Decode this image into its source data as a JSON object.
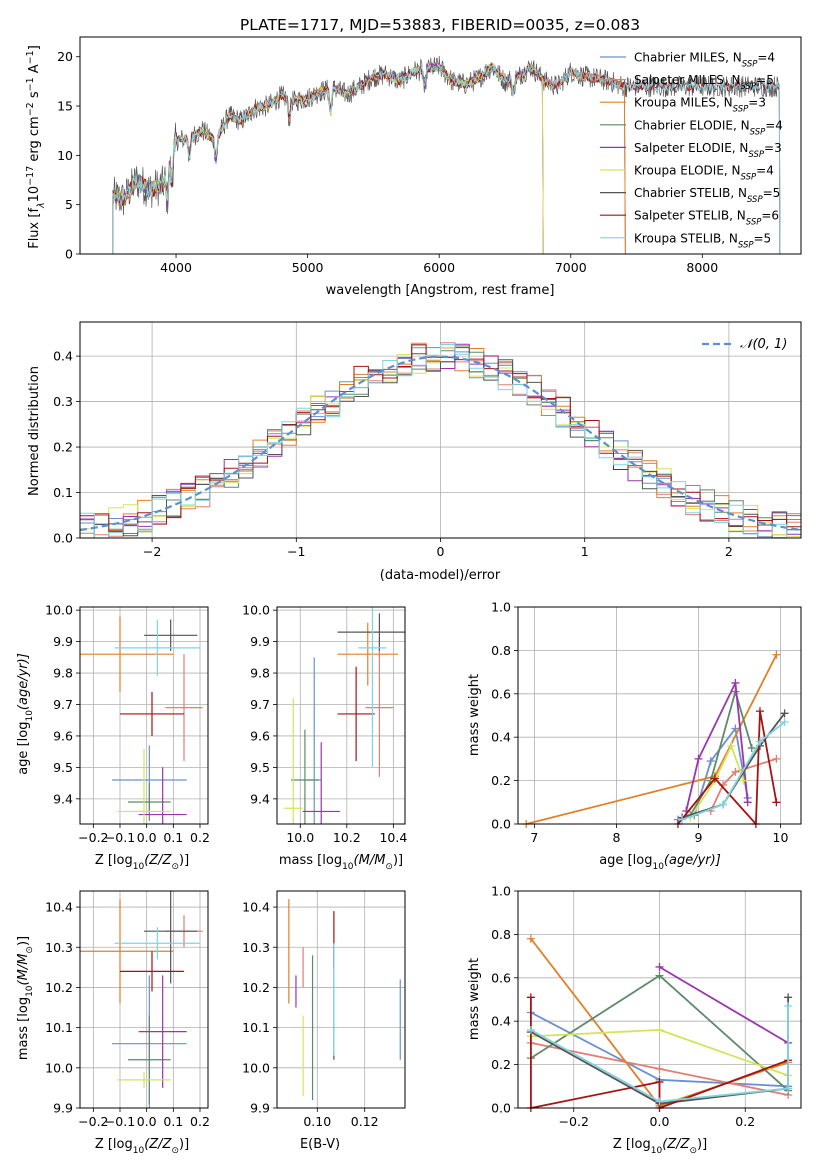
{
  "figure_title": "PLATE=1717, MJD=53883, FIBERID=0035, z=0.083",
  "series_styles": [
    {
      "name": "Chabrier MILES",
      "color": "#6a8fd0"
    },
    {
      "name": "Salpeter MILES",
      "color": "#e07f72"
    },
    {
      "name": "Kroupa MILES",
      "color": "#e0802a"
    },
    {
      "name": "Chabrier ELODIE",
      "color": "#5e8a6a"
    },
    {
      "name": "Salpeter ELODIE",
      "color": "#9a35b0"
    },
    {
      "name": "Kroupa ELODIE",
      "color": "#d6e35a"
    },
    {
      "name": "Chabrier STELIB",
      "color": "#555555"
    },
    {
      "name": "Salpeter STELIB",
      "color": "#a31515"
    },
    {
      "name": "Kroupa STELIB",
      "color": "#7fd4e0"
    }
  ],
  "chart_data": [
    {
      "id": "spectrum",
      "type": "line",
      "title": "PLATE=1717, MJD=53883, FIBERID=0035, z=0.083",
      "xlabel": "wavelength [Angstrom, rest frame]",
      "ylabel_main": "Flux [f",
      "ylabel_sub": "λ",
      "ylabel_rest": "10",
      "ylabel_exp1": "−17",
      "ylabel_mid": " erg cm",
      "ylabel_exp2": "−2",
      "ylabel_mid2": " s",
      "ylabel_exp3": "−1",
      "ylabel_mid3": " A",
      "ylabel_exp4": "−1",
      "ylabel_end": "]",
      "xlim": [
        3270,
        8750
      ],
      "ylim": [
        0,
        22
      ],
      "xticks": [
        4000,
        5000,
        6000,
        7000,
        8000
      ],
      "yticks": [
        0,
        5,
        10,
        15,
        20
      ],
      "grid": false,
      "legend_position": "upper right",
      "legend": [
        {
          "label": "Chabrier MILES, N",
          "sub": "SSP",
          "tail": "=4"
        },
        {
          "label": "Salpeter MILES, N",
          "sub": "SSP",
          "tail": "=5"
        },
        {
          "label": "Kroupa MILES, N",
          "sub": "SSP",
          "tail": "=3"
        },
        {
          "label": "Chabrier ELODIE, N",
          "sub": "SSP",
          "tail": "=4"
        },
        {
          "label": "Salpeter ELODIE, N",
          "sub": "SSP",
          "tail": "=3"
        },
        {
          "label": "Kroupa ELODIE, N",
          "sub": "SSP",
          "tail": "=4"
        },
        {
          "label": "Chabrier STELIB, N",
          "sub": "SSP",
          "tail": "=5"
        },
        {
          "label": "Salpeter STELIB, N",
          "sub": "SSP",
          "tail": "=6"
        },
        {
          "label": "Kroupa STELIB, N",
          "sub": "SSP",
          "tail": "=5"
        }
      ],
      "data_envelope": {
        "x": [
          3500,
          3600,
          3700,
          3800,
          3900,
          4000,
          4100,
          4200,
          4300,
          4400,
          4500,
          4600,
          4700,
          4800,
          4900,
          5000,
          5100,
          5200,
          5300,
          5400,
          5500,
          5600,
          5700,
          5800,
          5900,
          6000,
          6100,
          6200,
          6300,
          6400,
          6500,
          6600,
          6700,
          6800,
          6900,
          7000,
          7100,
          7200,
          7300,
          7400
        ],
        "y": [
          6.0,
          5.5,
          7.5,
          6.5,
          7.0,
          11.5,
          11.8,
          12.5,
          11.5,
          14.0,
          13.5,
          14.8,
          15.0,
          16.0,
          15.5,
          15.8,
          16.5,
          16.8,
          16.2,
          17.0,
          18.0,
          18.2,
          17.5,
          18.5,
          18.8,
          19.0,
          17.5,
          17.2,
          17.8,
          19.0,
          17.5,
          18.0,
          19.0,
          17.5,
          17.0,
          18.5,
          18.0,
          17.8,
          17.5,
          17.0
        ]
      },
      "model_end_wavelength": {
        "MILES": 7430,
        "ELODIE": 6800,
        "STELIB": 8600
      }
    },
    {
      "id": "residual_hist",
      "type": "histogram",
      "xlabel": "(data-model)/error",
      "ylabel": "Normed distribution",
      "xlim": [
        -2.5,
        2.5
      ],
      "ylim": [
        0,
        0.475
      ],
      "xticks": [
        -2,
        -1,
        0,
        1,
        2
      ],
      "xtick_labels": [
        "−2",
        "−1",
        "0",
        "1",
        "2"
      ],
      "yticks": [
        0.0,
        0.1,
        0.2,
        0.3,
        0.4
      ],
      "ytick_labels": [
        "0.0",
        "0.1",
        "0.2",
        "0.3",
        "0.4"
      ],
      "grid": true,
      "legend_position": "upper right",
      "reference_curve": {
        "label": "𝒩(0, 1)",
        "mean": 0,
        "sigma": 1,
        "style": "dashed"
      },
      "bin_width": 0.1
    },
    {
      "id": "age_vs_Z",
      "type": "errorbar",
      "xlabel_pre": "Z [log",
      "xlabel_sub": "10",
      "xlabel_post": "(Z/Z",
      "xlabel_sym": "⊙",
      "xlabel_end": ")]",
      "ylabel_pre": "age  [log",
      "ylabel_sub": "10",
      "ylabel_post": "(age/yr)]",
      "xlim": [
        -0.25,
        0.23
      ],
      "ylim": [
        9.32,
        10.01
      ],
      "xticks": [
        -0.2,
        -0.1,
        0.0,
        0.1,
        0.2
      ],
      "xtick_labels": [
        "−0.2",
        "−0.1",
        "0.0",
        "0.1",
        "0.2"
      ],
      "yticks": [
        9.4,
        9.5,
        9.6,
        9.7,
        9.8,
        9.9,
        10.0
      ],
      "ytick_labels": [
        "9.4",
        "9.5",
        "9.6",
        "9.7",
        "9.8",
        "9.9",
        "10.0"
      ],
      "grid": true,
      "points": [
        {
          "x": 0.01,
          "xerr": 0.14,
          "y": 9.46,
          "yerr": 0.11,
          "series": 0
        },
        {
          "x": 0.14,
          "xerr": 0.07,
          "y": 9.69,
          "yerr": 0.17,
          "series": 1
        },
        {
          "x": -0.1,
          "xerr": 0.2,
          "y": 9.86,
          "yerr": 0.12,
          "series": 2
        },
        {
          "x": 0.01,
          "xerr": 0.08,
          "y": 9.39,
          "yerr": 0.06,
          "series": 3
        },
        {
          "x": 0.06,
          "xerr": 0.09,
          "y": 9.35,
          "yerr": 0.15,
          "series": 4
        },
        {
          "x": -0.01,
          "xerr": 0.1,
          "y": 9.36,
          "yerr": 0.2,
          "series": 5
        },
        {
          "x": 0.09,
          "xerr": 0.1,
          "y": 9.92,
          "yerr": 0.05,
          "series": 6
        },
        {
          "x": 0.02,
          "xerr": 0.12,
          "y": 9.67,
          "yerr": 0.07,
          "series": 7
        },
        {
          "x": 0.04,
          "xerr": 0.16,
          "y": 9.88,
          "yerr": 0.09,
          "series": 8
        }
      ]
    },
    {
      "id": "age_vs_mass",
      "type": "errorbar",
      "xlabel_pre": "mass [log",
      "xlabel_sub": "10",
      "xlabel_post": "(M/M",
      "xlabel_sym": "⊙",
      "xlabel_end": ")]",
      "xlim": [
        9.9,
        10.45
      ],
      "ylim": [
        9.32,
        10.01
      ],
      "xticks": [
        10.0,
        10.2,
        10.4
      ],
      "xtick_labels": [
        "10.0",
        "10.2",
        "10.4"
      ],
      "yticks": [
        9.4,
        9.5,
        9.6,
        9.7,
        9.8,
        9.9,
        10.0
      ],
      "ytick_labels": [
        "9.4",
        "9.5",
        "9.6",
        "9.7",
        "9.8",
        "9.9",
        "10.0"
      ],
      "grid": true,
      "points": [
        {
          "x": 10.06,
          "xerr": 0.03,
          "y": 9.46,
          "yerr": 0.39,
          "series": 0
        },
        {
          "x": 10.34,
          "xerr": 0.06,
          "y": 9.69,
          "yerr": 0.22,
          "series": 1
        },
        {
          "x": 10.29,
          "xerr": 0.13,
          "y": 9.86,
          "yerr": 0.1,
          "series": 2
        },
        {
          "x": 10.02,
          "xerr": 0.06,
          "y": 9.46,
          "yerr": 0.16,
          "series": 3
        },
        {
          "x": 10.09,
          "xerr": 0.08,
          "y": 9.36,
          "yerr": 0.22,
          "series": 4
        },
        {
          "x": 9.97,
          "xerr": 0.04,
          "y": 9.37,
          "yerr": 0.35,
          "series": 5
        },
        {
          "x": 10.34,
          "xerr": 0.18,
          "y": 9.93,
          "yerr": 0.06,
          "series": 6
        },
        {
          "x": 10.24,
          "xerr": 0.08,
          "y": 9.67,
          "yerr": 0.15,
          "series": 7
        },
        {
          "x": 10.31,
          "xerr": 0.06,
          "y": 9.88,
          "yerr": 0.38,
          "series": 8
        }
      ]
    },
    {
      "id": "weight_vs_age",
      "type": "line",
      "xlabel_pre": "age  [log",
      "xlabel_sub": "10",
      "xlabel_post": "(age/yr)]",
      "ylabel": "mass weight",
      "xlim": [
        6.8,
        10.25
      ],
      "ylim": [
        0,
        1
      ],
      "xticks": [
        7,
        8,
        9,
        10
      ],
      "xtick_labels": [
        "7",
        "8",
        "9",
        "10"
      ],
      "yticks": [
        0.0,
        0.2,
        0.4,
        0.6,
        0.8,
        1.0
      ],
      "ytick_labels": [
        "0.0",
        "0.2",
        "0.4",
        "0.6",
        "0.8",
        "1.0"
      ],
      "grid": true,
      "series": [
        {
          "series": 0,
          "x": [
            8.75,
            8.95,
            9.15,
            9.45,
            9.6
          ],
          "y": [
            0.02,
            0.04,
            0.29,
            0.44,
            0.12
          ]
        },
        {
          "series": 1,
          "x": [
            9.15,
            9.3,
            9.45,
            9.95
          ],
          "y": [
            0.06,
            0.18,
            0.24,
            0.3
          ]
        },
        {
          "series": 2,
          "x": [
            6.9,
            9.2,
            9.95
          ],
          "y": [
            0.0,
            0.22,
            0.78
          ]
        },
        {
          "series": 3,
          "x": [
            8.9,
            9.15,
            9.45,
            9.65
          ],
          "y": [
            0.04,
            0.2,
            0.61,
            0.35
          ]
        },
        {
          "series": 4,
          "x": [
            8.85,
            9.0,
            9.45,
            9.6
          ],
          "y": [
            0.06,
            0.3,
            0.65,
            0.1
          ]
        },
        {
          "series": 5,
          "x": [
            8.9,
            9.2,
            9.4,
            9.55
          ],
          "y": [
            0.03,
            0.2,
            0.36,
            0.2
          ]
        },
        {
          "series": 6,
          "x": [
            8.8,
            9.3,
            9.75,
            10.05
          ],
          "y": [
            0.03,
            0.09,
            0.36,
            0.51
          ]
        },
        {
          "series": 7,
          "x": [
            8.75,
            9.2,
            9.7,
            9.75,
            9.95
          ],
          "y": [
            0.0,
            0.21,
            0.0,
            0.52,
            0.1
          ]
        },
        {
          "series": 8,
          "x": [
            8.8,
            9.3,
            9.75,
            10.05
          ],
          "y": [
            0.02,
            0.09,
            0.38,
            0.47
          ]
        }
      ]
    },
    {
      "id": "mass_vs_Z",
      "type": "errorbar",
      "xlabel_pre": "Z [log",
      "xlabel_sub": "10",
      "xlabel_post": "(Z/Z",
      "xlabel_sym": "⊙",
      "xlabel_end": ")]",
      "ylabel_pre": "mass [log",
      "ylabel_sub": "10",
      "ylabel_post": "(M/M",
      "ylabel_sym": "⊙",
      "ylabel_end": ")]",
      "xlim": [
        -0.25,
        0.23
      ],
      "ylim": [
        9.9,
        10.44
      ],
      "xticks": [
        -0.2,
        -0.1,
        0.0,
        0.1,
        0.2
      ],
      "xtick_labels": [
        "−0.2",
        "−0.1",
        "0.0",
        "0.1",
        "0.2"
      ],
      "yticks": [
        9.9,
        10.0,
        10.1,
        10.2,
        10.3,
        10.4
      ],
      "ytick_labels": [
        "9.9",
        "10.0",
        "10.1",
        "10.2",
        "10.3",
        "10.4"
      ],
      "grid": true,
      "points": [
        {
          "x": 0.01,
          "xerr": 0.14,
          "y": 10.06,
          "yerr": 0.17,
          "series": 0
        },
        {
          "x": 0.14,
          "xerr": 0.07,
          "y": 10.34,
          "yerr": 0.04,
          "series": 1
        },
        {
          "x": -0.1,
          "xerr": 0.2,
          "y": 10.29,
          "yerr": 0.13,
          "series": 2
        },
        {
          "x": 0.01,
          "xerr": 0.08,
          "y": 10.02,
          "yerr": 0.11,
          "series": 3
        },
        {
          "x": 0.06,
          "xerr": 0.09,
          "y": 10.09,
          "yerr": 0.14,
          "series": 4
        },
        {
          "x": -0.01,
          "xerr": 0.1,
          "y": 9.97,
          "yerr": 0.02,
          "series": 5
        },
        {
          "x": 0.09,
          "xerr": 0.1,
          "y": 10.34,
          "yerr": 0.13,
          "series": 6
        },
        {
          "x": 0.02,
          "xerr": 0.12,
          "y": 10.24,
          "yerr": 0.05,
          "series": 7
        },
        {
          "x": 0.04,
          "xerr": 0.16,
          "y": 10.31,
          "yerr": 0.04,
          "series": 8
        }
      ]
    },
    {
      "id": "mass_vs_ebv",
      "type": "errorbar",
      "xlabel": "E(B-V)",
      "xlim": [
        0.083,
        0.137
      ],
      "ylim": [
        9.9,
        10.44
      ],
      "xticks": [
        0.1,
        0.12
      ],
      "xtick_labels": [
        "0.10",
        "0.12"
      ],
      "yticks": [
        9.9,
        10.0,
        10.1,
        10.2,
        10.3,
        10.4
      ],
      "ytick_labels": [
        "9.9",
        "10.0",
        "10.1",
        "10.2",
        "10.3",
        "10.4"
      ],
      "grid": true,
      "points": [
        {
          "x": 0.135,
          "xerr": 0,
          "y": 10.12,
          "yerr": 0.1,
          "series": 0
        },
        {
          "x": 0.094,
          "xerr": 0,
          "y": 10.25,
          "yerr": 0.05,
          "series": 1
        },
        {
          "x": 0.088,
          "xerr": 0,
          "y": 10.29,
          "yerr": 0.13,
          "series": 2
        },
        {
          "x": 0.098,
          "xerr": 0,
          "y": 10.1,
          "yerr": 0.18,
          "series": 3
        },
        {
          "x": 0.091,
          "xerr": 0,
          "y": 10.19,
          "yerr": 0.04,
          "series": 4
        },
        {
          "x": 0.094,
          "xerr": 0,
          "y": 10.03,
          "yerr": 0.1,
          "series": 5
        },
        {
          "x": 0.107,
          "xerr": 0,
          "y": 10.16,
          "yerr": 0.14,
          "series": 6
        },
        {
          "x": 0.107,
          "xerr": 0,
          "y": 10.32,
          "yerr": 0.07,
          "series": 7
        },
        {
          "x": 0.107,
          "xerr": 0,
          "y": 10.17,
          "yerr": 0.14,
          "series": 8
        }
      ]
    },
    {
      "id": "weight_vs_Z",
      "type": "line",
      "xlabel_pre": "Z [log",
      "xlabel_sub": "10",
      "xlabel_post": "(Z/Z",
      "xlabel_sym": "⊙",
      "xlabel_end": ")]",
      "ylabel": "mass weight",
      "xlim": [
        -0.33,
        0.33
      ],
      "ylim": [
        0,
        1
      ],
      "xticks": [
        -0.2,
        0.0,
        0.2
      ],
      "xtick_labels": [
        "−0.2",
        "0.0",
        "0.2"
      ],
      "yticks": [
        0.0,
        0.2,
        0.4,
        0.6,
        0.8,
        1.0
      ],
      "ytick_labels": [
        "0.0",
        "0.2",
        "0.4",
        "0.6",
        "0.8",
        "1.0"
      ],
      "grid": true,
      "series": [
        {
          "series": 0,
          "x": [
            -0.3,
            0.0,
            0.3
          ],
          "y": [
            0.44,
            0.13,
            0.1
          ]
        },
        {
          "series": 1,
          "x": [
            -0.3,
            0.0,
            0.3
          ],
          "y": [
            0.3,
            0.18,
            0.06
          ]
        },
        {
          "series": 2,
          "x": [
            -0.3,
            0.0,
            0.3
          ],
          "y": [
            0.78,
            0.01,
            0.21
          ]
        },
        {
          "series": 3,
          "x": [
            -0.3,
            0.0,
            0.3
          ],
          "y": [
            0.23,
            0.61,
            0.08
          ]
        },
        {
          "series": 4,
          "x": [
            0.0,
            0.3
          ],
          "y": [
            0.65,
            0.3
          ]
        },
        {
          "series": 5,
          "x": [
            -0.3,
            0.0,
            0.3
          ],
          "y": [
            0.33,
            0.36,
            0.15
          ]
        },
        {
          "series": 6,
          "x": [
            -0.3,
            0.0,
            0.3,
            0.3
          ],
          "y": [
            0.35,
            0.02,
            0.09,
            0.51
          ]
        },
        {
          "series": 7,
          "x": [
            -0.3,
            -0.3,
            0.0,
            0.0,
            0.3
          ],
          "y": [
            0.51,
            0.0,
            0.12,
            0.0,
            0.22
          ]
        },
        {
          "series": 8,
          "x": [
            -0.3,
            0.0,
            0.3,
            0.3
          ],
          "y": [
            0.36,
            0.03,
            0.09,
            0.47
          ]
        }
      ]
    }
  ]
}
